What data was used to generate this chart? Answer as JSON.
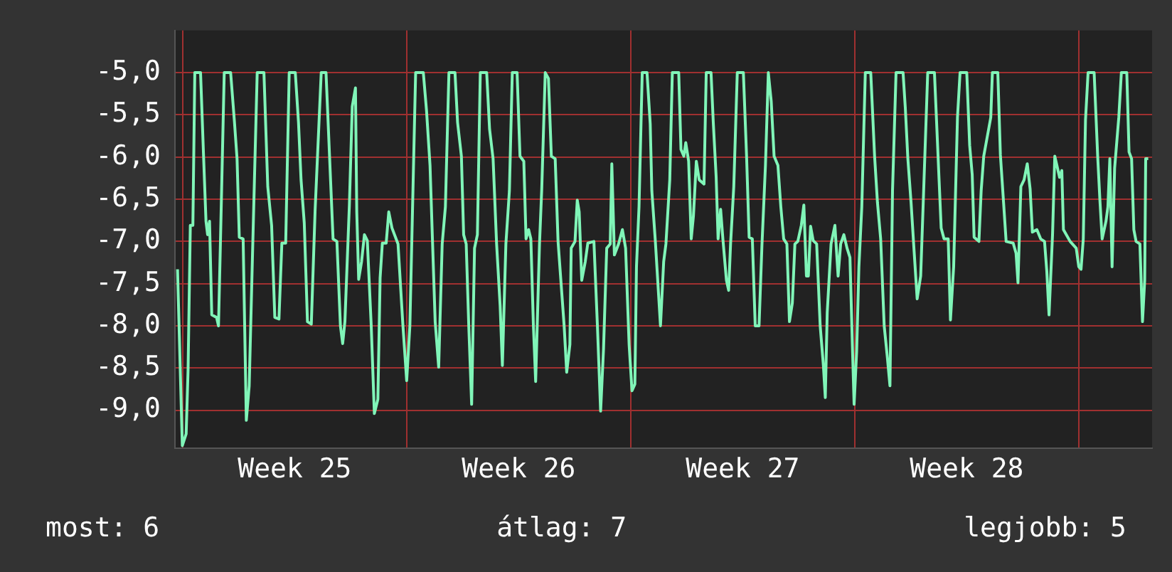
{
  "chart_data": {
    "type": "line",
    "x": [
      "--06-18T20:10",
      "--06-18T23:46",
      "--06-19T02:38",
      "--06-19T04:05",
      "--06-19T05:46",
      "--06-19T07:41",
      "--06-19T09:07",
      "--06-19T13:26",
      "--06-19T15:50",
      "--06-19T17:31",
      "--06-19T18:43",
      "--06-19T20:10",
      "--06-19T21:50",
      "--06-20T01:26",
      "--06-20T02:53",
      "--06-20T04:19",
      "--06-20T07:12",
      "--06-20T12:00",
      "--06-20T14:53",
      "--06-20T16:48",
      "--06-20T18:29",
      "--06-20T21:22",
      "--06-20T23:46",
      "--06-21T01:55",
      "--06-21T04:34",
      "--06-21T07:55",
      "--06-21T12:58",
      "--06-21T15:50",
      "--06-21T18:43",
      "--06-21T21:07",
      "--06-22T00:14",
      "--06-22T02:24",
      "--06-22T05:17",
      "--06-22T07:55",
      "--06-22T12:29",
      "--06-22T14:53",
      "--06-22T16:48",
      "--06-22T19:12",
      "--06-22T21:36",
      "--06-23T00:29",
      "--06-23T03:22",
      "--06-23T07:55",
      "--06-23T11:31",
      "--06-23T14:10",
      "--06-23T16:48",
      "--06-23T19:41",
      "--06-23T22:19",
      "--06-24T00:00",
      "--06-24T01:41",
      "--06-24T05:02",
      "--06-24T07:12",
      "--06-24T09:36",
      "--06-24T10:34",
      "--06-24T12:00",
      "--06-24T14:10",
      "--06-24T16:19",
      "--06-24T18:29",
      "--06-24T21:22",
      "--06-24T23:46",
      "--06-25T02:24",
      "--06-25T04:05",
      "--06-25T05:46",
      "--06-25T08:38",
      "--06-25T10:34",
      "--06-25T12:58",
      "--06-25T17:31",
      "--06-25T21:07",
      "--06-26T00:00",
      "--06-26T02:24",
      "--06-26T06:43",
      "--06-26T12:29",
      "--06-26T14:53",
      "--06-26T17:31",
      "--06-26T19:26",
      "--06-26T21:22",
      "--06-27T00:00",
      "--06-27T02:38",
      "--06-27T05:02",
      "--06-27T07:41",
      "--06-27T12:14",
      "--06-27T14:10",
      "--06-27T17:02",
      "--06-27T18:43",
      "--06-27T20:38",
      "--06-27T22:34",
      "--06-28T00:43",
      "--06-28T02:53",
      "--06-28T05:02",
      "--06-28T07:12",
      "--06-28T12:00",
      "--06-28T14:10",
      "--06-28T16:48",
      "--06-28T19:26",
      "--06-28T22:05",
      "--06-28T23:46",
      "--06-29T02:24",
      "--06-29T05:02",
      "--06-29T07:12",
      "--06-29T10:48",
      "--06-29T12:58",
      "--06-29T15:50",
      "--06-29T17:31",
      "--06-29T19:26",
      "--06-29T21:07",
      "--06-29T23:02",
      "--06-30T00:43",
      "--06-30T03:36",
      "--06-30T05:17",
      "--06-30T07:55",
      "--06-30T10:19",
      "--06-30T12:29",
      "--06-30T15:22",
      "--06-30T17:31",
      "--06-30T22:05",
      "--07-01T00:00",
      "--07-01T02:24",
      "--07-01T03:22",
      "--07-01T06:14",
      "--07-01T07:55",
      "--07-01T09:22",
      "--07-01T11:17",
      "--07-01T13:55",
      "--07-01T15:50",
      "--07-01T20:24",
      "--07-01T23:02",
      "--07-02T01:26",
      "--07-02T03:36",
      "--07-02T06:00",
      "--07-02T08:38",
      "--07-02T09:50",
      "--07-02T11:46",
      "--07-02T14:53",
      "--07-02T17:46",
      "--07-02T20:10",
      "--07-02T22:48",
      "--07-03T00:58",
      "--07-03T03:07",
      "--07-03T04:19",
      "--07-03T06:14",
      "--07-03T08:38",
      "--07-03T12:14",
      "--07-03T14:38",
      "--07-03T15:50",
      "--07-03T18:29",
      "--07-03T22:19",
      "--07-04T00:43",
      "--07-04T02:24",
      "--07-04T05:17",
      "--07-04T07:12",
      "--07-04T12:00",
      "--07-04T13:41",
      "--07-04T15:50",
      "--07-04T17:17",
      "--07-04T19:26",
      "--07-04T21:22",
      "--07-04T23:02",
      "--07-05T01:12",
      "--07-05T03:22",
      "--07-05T06:58",
      "--07-05T08:38",
      "--07-05T12:14",
      "--07-05T13:55",
      "--07-05T16:05",
      "--07-05T17:31",
      "--07-05T19:26",
      "--07-05T21:07",
      "--07-05T23:46",
      "--07-06T01:26",
      "--07-06T02:53",
      "--07-06T05:17",
      "--07-06T07:55",
      "--07-06T12:29",
      "--07-06T14:53",
      "--07-06T16:48",
      "--07-06T19:12",
      "--07-06T21:22",
      "--07-07T00:14",
      "--07-07T02:24",
      "--07-07T05:02",
      "--07-07T07:12",
      "--07-07T09:22",
      "--07-07T11:31",
      "--07-07T14:24",
      "--07-07T16:34",
      "--07-07T18:43",
      "--07-07T21:07",
      "--07-07T23:02",
      "--07-08T01:12",
      "--07-08T03:07",
      "--07-08T05:17",
      "--07-08T07:55",
      "--07-08T09:50",
      "--07-08T11:46",
      "--07-08T13:12",
      "--07-08T14:53",
      "--07-08T16:48",
      "--07-08T19:26",
      "--07-08T22:05",
      "--07-09T00:29",
      "--07-09T01:55",
      "--07-09T03:22",
      "--07-09T06:14",
      "--07-09T09:07",
      "--07-09T11:31",
      "--07-09T13:26",
      "--07-09T15:50",
      "--07-09T18:14",
      "--07-09T20:24",
      "--07-09T22:19",
      "--07-09T23:31",
      "--07-10T01:26",
      "--07-10T03:07",
      "--07-10T05:17",
      "--07-10T07:55",
      "--07-10T12:00",
      "--07-10T14:53",
      "--07-10T17:02",
      "--07-10T19:26",
      "--07-10T22:05",
      "--07-11T00:29",
      "--07-11T02:24",
      "--07-11T04:19",
      "--07-11T06:58",
      "--07-11T12:14",
      "--07-11T13:55",
      "--07-11T15:50",
      "--07-11T18:14",
      "--07-11T20:10",
      "--07-11T22:48",
      "--07-12T01:26",
      "--07-12T03:36",
      "--07-12T06:43",
      "--07-12T11:46",
      "--07-12T13:41",
      "--07-12T16:48",
      "--07-12T18:58",
      "--07-12T22:05",
      "--07-12T23:46",
      "--07-13T02:10",
      "--07-13T05:02",
      "--07-13T06:58",
      "--07-13T12:00",
      "--07-13T14:10",
      "--07-13T16:05",
      "--07-13T17:31",
      "--07-13T21:07",
      "--07-13T22:48",
      "--07-14T00:43",
      "--07-14T06:00",
      "--07-14T07:12",
      "--07-14T11:17",
      "--07-14T13:12",
      "--07-14T15:36",
      "--07-14T17:31",
      "--07-14T22:48",
      "--07-15T00:58",
      "--07-15T02:24",
      "--07-15T04:34",
      "--07-15T06:58",
      "--07-15T09:22",
      "--07-15T11:31",
      "--07-15T13:12",
      "--07-15T16:34",
      "--07-15T19:26",
      "--07-15T22:19",
      "--07-16T00:00",
      "--07-16T01:41",
      "--07-16T04:19",
      "--07-16T06:00",
      "--07-16T09:36",
      "--07-16T11:17",
      "--07-16T12:29",
      "--07-16T17:31",
      "--07-16T22:05",
      "--07-17T00:00",
      "--07-17T01:41",
      "--07-17T03:22",
      "--07-17T05:02",
      "--07-17T06:58",
      "--07-17T11:31",
      "--07-17T14:10",
      "--07-17T15:50",
      "--07-17T17:31",
      "--07-17T20:24",
      "--07-17T21:50",
      "--07-17T23:17",
      "--07-18T00:58",
      "--07-18T02:53",
      "--07-18T06:00",
      "--07-18T07:55",
      "--07-18T12:00",
      "--07-18T13:41",
      "--07-18T15:36",
      "--07-18T17:17",
      "--07-18T18:58",
      "--07-18T21:50",
      "--07-18T23:46",
      "--07-19T01:26",
      "--07-19T02:10",
      "--07-19T04:05"
    ],
    "series": [
      {
        "color": "#80f5b8",
        "values": [
          -7.33,
          -9.42,
          -9.28,
          -8.52,
          -6.81,
          -6.81,
          -5.0,
          -5.0,
          -6.05,
          -6.76,
          -6.92,
          -6.76,
          -7.87,
          -7.9,
          -8.0,
          -7.03,
          -5.0,
          -5.0,
          -5.59,
          -6.02,
          -6.95,
          -6.97,
          -9.12,
          -8.71,
          -7.05,
          -5.0,
          -5.0,
          -6.35,
          -6.81,
          -7.9,
          -7.92,
          -7.02,
          -7.02,
          -5.0,
          -5.0,
          -5.59,
          -6.27,
          -6.78,
          -7.95,
          -7.98,
          -6.62,
          -5.0,
          -5.0,
          -5.99,
          -6.97,
          -7.0,
          -8.0,
          -8.21,
          -7.95,
          -6.57,
          -5.4,
          -5.18,
          -6.65,
          -7.45,
          -7.24,
          -6.92,
          -6.99,
          -7.98,
          -9.04,
          -8.87,
          -7.43,
          -7.02,
          -7.02,
          -6.65,
          -6.84,
          -7.03,
          -7.98,
          -8.65,
          -8.0,
          -5.0,
          -5.0,
          -5.45,
          -6.1,
          -7.03,
          -7.95,
          -8.49,
          -7.03,
          -6.59,
          -5.0,
          -5.0,
          -5.59,
          -5.99,
          -6.92,
          -7.03,
          -8.0,
          -8.93,
          -7.08,
          -6.92,
          -5.0,
          -5.0,
          -5.67,
          -6.02,
          -7.03,
          -7.76,
          -8.47,
          -7.03,
          -6.4,
          -5.0,
          -5.0,
          -5.99,
          -6.05,
          -6.97,
          -6.86,
          -6.97,
          -8.0,
          -8.66,
          -7.03,
          -6.38,
          -5.0,
          -5.07,
          -5.99,
          -6.02,
          -7.0,
          -8.0,
          -8.55,
          -8.22,
          -7.08,
          -7.0,
          -6.51,
          -6.65,
          -7.46,
          -7.24,
          -7.02,
          -7.0,
          -8.0,
          -9.01,
          -8.28,
          -7.08,
          -7.03,
          -6.08,
          -7.16,
          -7.03,
          -6.86,
          -7.08,
          -8.22,
          -8.77,
          -8.69,
          -7.3,
          -6.59,
          -5.0,
          -5.0,
          -5.61,
          -6.4,
          -7.0,
          -8.0,
          -7.24,
          -7.03,
          -6.27,
          -5.0,
          -5.0,
          -5.91,
          -5.99,
          -5.83,
          -6.05,
          -6.97,
          -6.7,
          -6.05,
          -6.27,
          -6.32,
          -5.0,
          -5.0,
          -5.59,
          -6.24,
          -6.97,
          -6.62,
          -6.97,
          -7.46,
          -7.58,
          -7.03,
          -6.35,
          -5.0,
          -5.0,
          -5.99,
          -6.95,
          -6.97,
          -8.0,
          -8.0,
          -7.05,
          -6.1,
          -5.0,
          -5.34,
          -5.99,
          -6.1,
          -6.59,
          -6.97,
          -7.03,
          -7.95,
          -7.73,
          -7.03,
          -7.0,
          -6.81,
          -6.57,
          -7.41,
          -7.41,
          -6.82,
          -6.99,
          -7.03,
          -8.0,
          -8.47,
          -8.85,
          -7.84,
          -7.03,
          -6.81,
          -7.41,
          -7.03,
          -6.92,
          -7.08,
          -7.19,
          -8.28,
          -8.93,
          -8.3,
          -7.3,
          -6.59,
          -5.0,
          -5.0,
          -5.99,
          -6.54,
          -6.97,
          -8.0,
          -8.38,
          -8.71,
          -6.4,
          -5.0,
          -5.0,
          -5.42,
          -6.02,
          -6.54,
          -7.03,
          -7.68,
          -7.41,
          -6.43,
          -5.0,
          -5.0,
          -5.7,
          -6.84,
          -6.97,
          -6.97,
          -7.93,
          -7.3,
          -5.53,
          -5.0,
          -5.0,
          -5.86,
          -6.21,
          -6.95,
          -7.0,
          -6.4,
          -5.99,
          -5.53,
          -5.0,
          -5.0,
          -5.97,
          -6.54,
          -7.0,
          -7.02,
          -7.14,
          -7.49,
          -6.35,
          -6.27,
          -6.08,
          -6.38,
          -6.89,
          -6.86,
          -6.97,
          -7.0,
          -7.35,
          -7.87,
          -6.92,
          -5.99,
          -6.24,
          -6.16,
          -6.86,
          -7.0,
          -7.08,
          -7.3,
          -7.33,
          -6.97,
          -5.56,
          -5.0,
          -5.0,
          -5.99,
          -6.51,
          -6.97,
          -6.76,
          -6.59,
          -6.02,
          -7.3,
          -6.13,
          -5.53,
          -5.0,
          -5.0,
          -5.94,
          -6.02,
          -6.86,
          -7.0,
          -7.03,
          -7.95,
          -7.46,
          -6.02,
          -6.02
        ]
      }
    ],
    "xlim": [
      "--06-18T18:14",
      "--07-19T06:58"
    ],
    "xticks": [
      {
        "value": "--06-19",
        "label": null
      },
      {
        "value": "--06-22T12:00",
        "label": "Week 25"
      },
      {
        "value": "--06-26",
        "label": null
      },
      {
        "value": "--06-29T12:00",
        "label": "Week 26"
      },
      {
        "value": "--07-03",
        "label": null
      },
      {
        "value": "--07-06T12:00",
        "label": "Week 27"
      },
      {
        "value": "--07-10",
        "label": null
      },
      {
        "value": "--07-13T12:00",
        "label": "Week 28"
      },
      {
        "value": "--07-17",
        "label": null
      }
    ],
    "ylim": [
      -9.45,
      -4.5
    ],
    "yticks": [
      {
        "value": -9,
        "label": "-9,0"
      },
      {
        "value": -8.5,
        "label": "-8,5"
      },
      {
        "value": -8,
        "label": "-8,0"
      },
      {
        "value": -7.5,
        "label": "-7,5"
      },
      {
        "value": -7,
        "label": "-7,0"
      },
      {
        "value": -6.5,
        "label": "-6,5"
      },
      {
        "value": -6,
        "label": "-6,0"
      },
      {
        "value": -5.5,
        "label": "-5,5"
      },
      {
        "value": -5,
        "label": "-5,0"
      }
    ],
    "grid": true,
    "marker": "none",
    "annotations": [
      "most: 6",
      "átlag: 7",
      "legjobb: 5"
    ]
  }
}
